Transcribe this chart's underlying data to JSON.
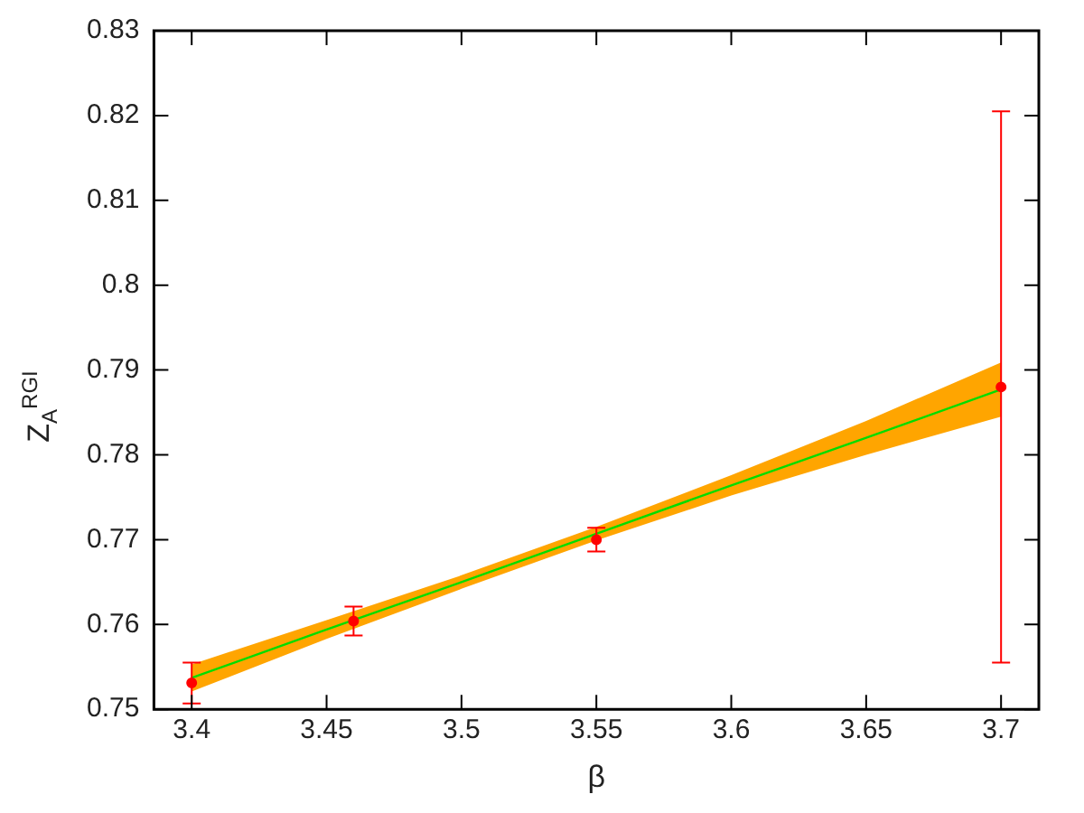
{
  "chart_data": {
    "type": "scatter",
    "xlabel": "β",
    "ylabel": "Z$_{A}$$^{RGI}$",
    "x": [
      3.4,
      3.46,
      3.55,
      3.7
    ],
    "series": [
      {
        "color": "#ff0000",
        "values": [
          0.7531,
          0.7604,
          0.77,
          0.788
        ],
        "errors": [
          0.0024,
          0.0017,
          0.0014,
          0.0325
        ],
        "marker": "circle"
      },
      {
        "type": "line",
        "color": "#00dd00",
        "x": [
          3.4,
          3.45,
          3.5,
          3.55,
          3.6,
          3.65,
          3.7
        ],
        "values": [
          0.7537,
          0.7594,
          0.765,
          0.7707,
          0.7764,
          0.782,
          0.7877
        ],
        "lower": [
          0.7521,
          0.7583,
          0.7642,
          0.7699,
          0.7752,
          0.78,
          0.7845
        ],
        "upper": [
          0.7553,
          0.7605,
          0.7658,
          0.7715,
          0.7776,
          0.784,
          0.7909
        ],
        "marker": "none",
        "line_style": "solid"
      }
    ],
    "xlim": [
      3.386,
      3.714
    ],
    "xticks": [
      3.4,
      3.45,
      3.5,
      3.55,
      3.6,
      3.65,
      3.7
    ],
    "ylim": [
      0.75,
      0.83
    ],
    "yticks": [
      0.75,
      0.76,
      0.77,
      0.78,
      0.79,
      0.8,
      0.81,
      0.82,
      0.83
    ],
    "legend": false
  }
}
